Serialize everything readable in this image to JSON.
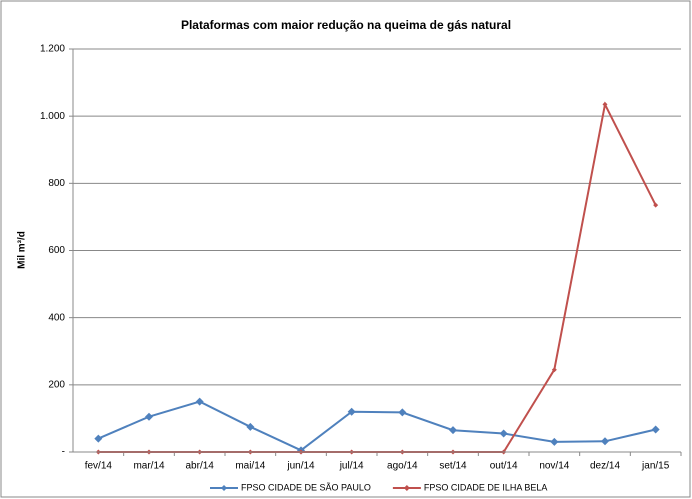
{
  "chart_data": {
    "type": "line",
    "title": "Plataformas com maior redução na queima de gás natural",
    "y_label": "Mil m³/d",
    "categories": [
      "fev/14",
      "mar/14",
      "abr/14",
      "mai/14",
      "jun/14",
      "jul/14",
      "ago/14",
      "set/14",
      "out/14",
      "nov/14",
      "dez/14",
      "jan/15"
    ],
    "series": [
      {
        "name": "FPSO CIDADE DE SÃO PAULO",
        "color": "#4f81bd",
        "values": [
          40,
          105,
          150,
          75,
          5,
          120,
          118,
          65,
          55,
          30,
          32,
          67
        ]
      },
      {
        "name": "FPSO CIDADE DE ILHA BELA",
        "color": "#c0504d",
        "values": [
          0,
          0,
          0,
          0,
          0,
          0,
          0,
          0,
          0,
          245,
          1035,
          735
        ]
      }
    ],
    "ylim": [
      0,
      1200
    ],
    "yticks": [
      {
        "value": 0,
        "label": "-"
      },
      200,
      400,
      600,
      800,
      {
        "value": 1000,
        "label": "1.000"
      },
      {
        "value": 1200,
        "label": "1.200"
      }
    ],
    "grid": true,
    "legend": "bottom"
  }
}
